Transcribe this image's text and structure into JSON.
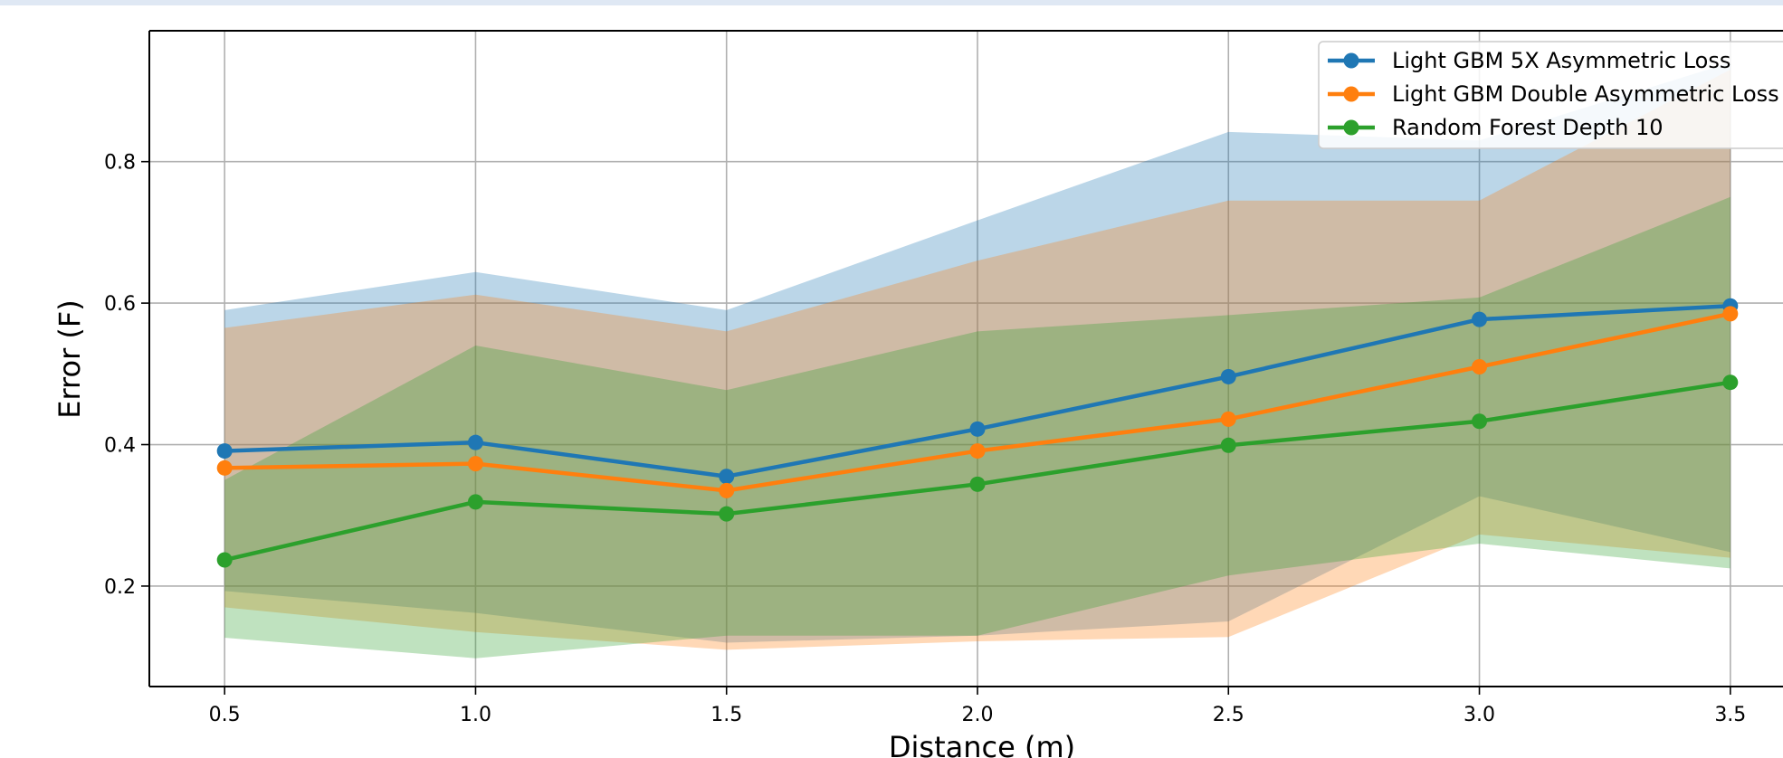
{
  "chart_data": {
    "type": "line",
    "title": "",
    "xlabel": "Distance (m)",
    "ylabel": "Error (F)",
    "x": [
      0.5,
      1.0,
      1.5,
      2.0,
      2.5,
      3.0,
      3.5
    ],
    "xlim": [
      0.35,
      3.65
    ],
    "ylim": [
      0.058,
      0.985
    ],
    "xticks": [
      "0.5",
      "1.0",
      "1.5",
      "2.0",
      "2.5",
      "3.0",
      "3.5"
    ],
    "yticks": [
      "0.2",
      "0.4",
      "0.6",
      "0.8"
    ],
    "grid": true,
    "legend_position": "top-right",
    "series": [
      {
        "name": "Light GBM 5X Asymmetric Loss",
        "color": "#1f77b4",
        "values": [
          0.391,
          0.403,
          0.355,
          0.422,
          0.496,
          0.577,
          0.596
        ],
        "band_upper": [
          0.59,
          0.644,
          0.59,
          0.717,
          0.842,
          0.83,
          0.94
        ],
        "band_lower": [
          0.193,
          0.162,
          0.12,
          0.13,
          0.15,
          0.327,
          0.248
        ]
      },
      {
        "name": "Light GBM Double Asymmetric Loss",
        "color": "#ff7f0e",
        "values": [
          0.367,
          0.373,
          0.335,
          0.391,
          0.436,
          0.51,
          0.585
        ],
        "band_upper": [
          0.565,
          0.612,
          0.56,
          0.66,
          0.745,
          0.745,
          0.93
        ],
        "band_lower": [
          0.17,
          0.135,
          0.11,
          0.122,
          0.128,
          0.273,
          0.24
        ]
      },
      {
        "name": "Random Forest Depth 10",
        "color": "#2ca02c",
        "values": [
          0.237,
          0.319,
          0.302,
          0.344,
          0.399,
          0.433,
          0.488
        ],
        "band_upper": [
          0.35,
          0.54,
          0.477,
          0.56,
          0.583,
          0.608,
          0.75
        ],
        "band_lower": [
          0.127,
          0.098,
          0.13,
          0.13,
          0.215,
          0.26,
          0.225
        ]
      }
    ]
  }
}
